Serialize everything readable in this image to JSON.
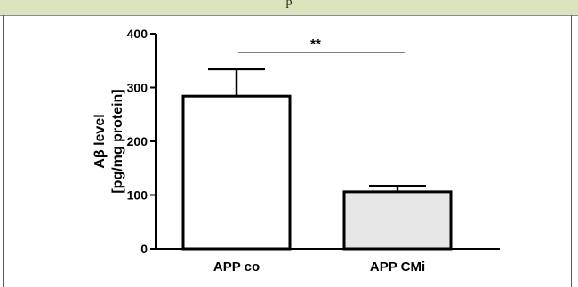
{
  "header": {
    "text": "p"
  },
  "chart_data": {
    "type": "bar",
    "categories": [
      "APP co",
      "APP CMi"
    ],
    "values": [
      284,
      106
    ],
    "errors": [
      50,
      11
    ],
    "bar_fills": [
      "#ffffff",
      "#e6e6e6"
    ],
    "ylabel_lines": [
      "Aβ level",
      "[pg/mg protein]"
    ],
    "ylim": [
      0,
      400
    ],
    "yticks": [
      0,
      100,
      200,
      300,
      400
    ],
    "grid": false,
    "significance": {
      "label": "**"
    }
  }
}
